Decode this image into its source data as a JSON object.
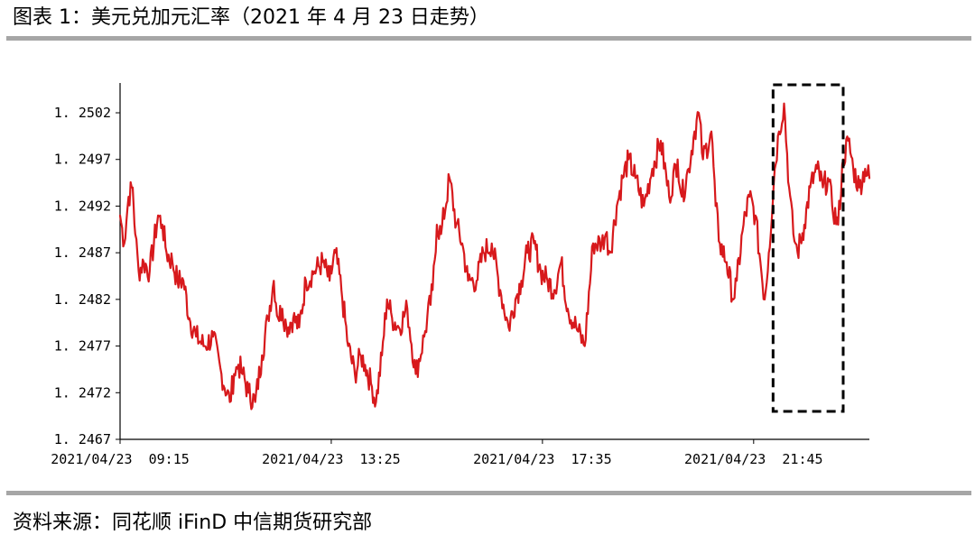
{
  "header": {
    "title": "图表 1：美元兑加元汇率（2021 年 4 月 23 日走势）"
  },
  "footer": {
    "source": "资料来源：同花顺 iFinD 中信期货研究部"
  },
  "chart_data": {
    "type": "line",
    "title": "图表 1：美元兑加元汇率（2021 年 4 月 23 日走势）",
    "xlabel": "",
    "ylabel": "",
    "ylim": [
      1.2467,
      1.2505
    ],
    "yticks": [
      1.2467,
      1.2472,
      1.2477,
      1.2482,
      1.2487,
      1.2492,
      1.2497,
      1.2502
    ],
    "ytick_labels": [
      "1. 2467",
      "1. 2472",
      "1. 2477",
      "1. 2482",
      "1. 2487",
      "1. 2492",
      "1. 2497",
      "1. 2502"
    ],
    "xtick_labels": [
      "2021/04/23  09:15",
      "2021/04/23  13:25",
      "2021/04/23  17:35",
      "2021/04/23  21:45"
    ],
    "xtick_minutes": [
      0,
      250,
      500,
      750
    ],
    "xlim_minutes": [
      0,
      887
    ],
    "grid": false,
    "legend": "none",
    "line_color": "#d7191c",
    "highlight_box": {
      "x_minutes": [
        773,
        856
      ],
      "y": [
        1.247,
        1.2505
      ],
      "style": "dashed",
      "color": "#000000"
    },
    "series": [
      {
        "x_minutes": [
          0,
          5,
          10,
          15,
          18,
          22,
          28,
          35,
          45,
          50,
          55,
          62,
          68,
          75,
          82,
          90,
          100,
          110,
          120,
          130,
          135,
          140,
          145,
          152,
          160,
          168,
          175,
          182,
          187,
          192,
          197,
          205,
          212,
          220,
          230,
          240,
          248,
          255,
          262,
          270,
          278,
          285,
          290,
          297,
          303,
          310,
          316,
          322,
          330,
          340,
          350,
          360,
          370,
          375,
          380,
          390,
          398,
          405,
          412,
          422,
          430,
          440,
          450,
          460,
          468,
          475,
          482,
          490,
          498,
          506,
          514,
          522,
          530,
          540,
          550,
          560,
          570,
          575,
          580,
          588,
          595,
          602,
          610,
          620,
          630,
          640,
          650,
          660,
          665,
          673,
          680,
          685,
          690,
          700,
          705,
          710,
          718,
          726,
          730,
          738,
          745,
          752,
          758,
          763,
          768,
          775,
          780,
          786,
          792,
          797,
          802,
          810,
          817,
          825,
          832,
          838,
          843,
          850,
          856,
          862,
          868,
          875,
          882,
          887
        ],
        "values": [
          1.2491,
          1.2488,
          1.2493,
          1.2494,
          1.2489,
          1.2485,
          1.2486,
          1.2485,
          1.2491,
          1.249,
          1.2487,
          1.2486,
          1.2484,
          1.2484,
          1.248,
          1.2478,
          1.2477,
          1.2478,
          1.2474,
          1.2471,
          1.2474,
          1.2475,
          1.2474,
          1.2472,
          1.2471,
          1.2476,
          1.248,
          1.2484,
          1.248,
          1.2481,
          1.2479,
          1.248,
          1.2479,
          1.2484,
          1.2485,
          1.2486,
          1.2484,
          1.2487,
          1.2483,
          1.2477,
          1.2474,
          1.2476,
          1.2475,
          1.2473,
          1.2471,
          1.2476,
          1.2482,
          1.248,
          1.2479,
          1.2481,
          1.2474,
          1.2478,
          1.2483,
          1.249,
          1.2489,
          1.2495,
          1.249,
          1.2488,
          1.2484,
          1.2484,
          1.2487,
          1.2488,
          1.2483,
          1.2479,
          1.2482,
          1.2484,
          1.2487,
          1.2488,
          1.2485,
          1.2484,
          1.2483,
          1.2486,
          1.2481,
          1.2479,
          1.2477,
          1.2488,
          1.2488,
          1.2489,
          1.2487,
          1.2492,
          1.2495,
          1.2497,
          1.2495,
          1.2492,
          1.2496,
          1.2499,
          1.2493,
          1.2497,
          1.2493,
          1.2496,
          1.25,
          1.2502,
          1.2497,
          1.25,
          1.2492,
          1.2488,
          1.2486,
          1.2482,
          1.2484,
          1.249,
          1.2493,
          1.2491,
          1.2486,
          1.2482,
          1.2487,
          1.2496,
          1.25,
          1.2503,
          1.2494,
          1.2489,
          1.2487,
          1.249,
          1.2494,
          1.2496,
          1.2494,
          1.2495,
          1.2492,
          1.249,
          1.2497,
          1.2499,
          1.2496,
          1.2494,
          1.2496,
          1.2495
        ]
      }
    ]
  }
}
